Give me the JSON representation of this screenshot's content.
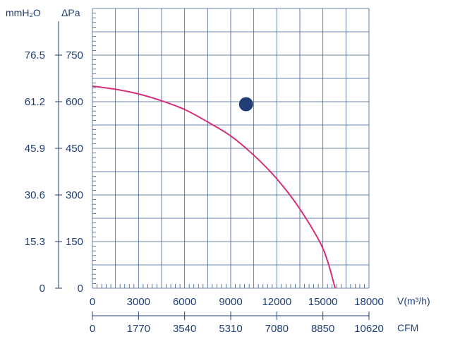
{
  "chart_data": {
    "type": "line",
    "y_units": {
      "left": "mmH₂O",
      "right": "ΔPa"
    },
    "x_unit_primary": "V(m³/h)",
    "x_unit_secondary": "CFM",
    "y_ticks_pa": [
      "0",
      "150",
      "300",
      "450",
      "600",
      "750"
    ],
    "y_ticks_mmh2o": [
      "0",
      "15.3",
      "30.6",
      "45.9",
      "61.2",
      "76.5"
    ],
    "x_ticks_m3h": [
      "0",
      "3000",
      "6000",
      "9000",
      "12000",
      "15000",
      "18000"
    ],
    "x_ticks_cfm": [
      "0",
      "1770",
      "3540",
      "5310",
      "7080",
      "8850",
      "10620"
    ],
    "xlim": [
      0,
      18000
    ],
    "ylim": [
      0,
      900
    ],
    "grid": true,
    "curve_color": "#d62f7a",
    "axis_color": "#1f3f74",
    "grid_color": "#3c5f92",
    "series": [
      {
        "marker": "1",
        "x": [
          0,
          1500,
          3000,
          4500,
          6000,
          7500,
          9000,
          10500,
          12000,
          13500,
          15000,
          15800
        ],
        "y": [
          650,
          640,
          625,
          603,
          575,
          535,
          490,
          428,
          352,
          255,
          128,
          0
        ]
      }
    ]
  }
}
